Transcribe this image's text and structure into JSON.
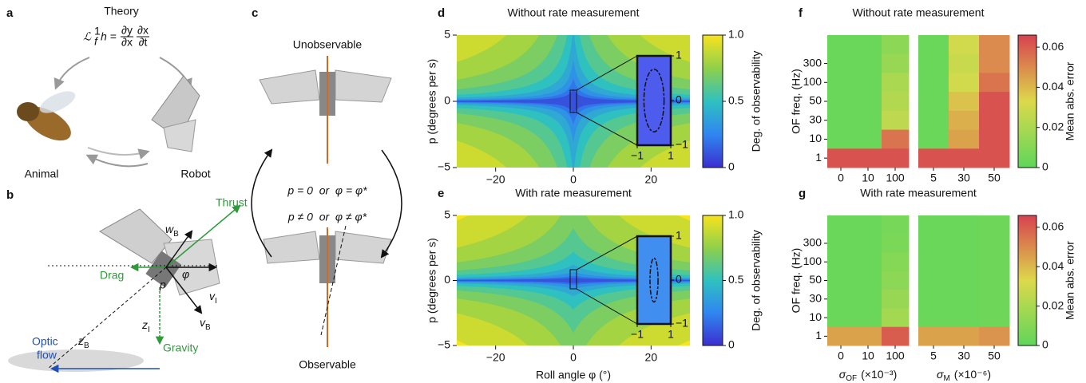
{
  "panels": {
    "a": {
      "label": "a",
      "title": "Theory",
      "equation": {
        "operator": "ℒ",
        "sup": "1",
        "sub": "f",
        "rest": "h =",
        "frac1_num": "∂y",
        "frac1_den": "∂x",
        "frac2_num": "∂x",
        "frac2_den": "∂t"
      },
      "animal": "Animal",
      "robot": "Robot"
    },
    "b": {
      "label": "b",
      "thrust": "Thrust",
      "drag": "Drag",
      "gravity": "Gravity",
      "optic_flow": [
        "Optic",
        "flow"
      ],
      "phi": "φ",
      "p": "p",
      "vectors": [
        {
          "main": "w",
          "sub": "B"
        },
        {
          "main": "v",
          "sub": "I"
        },
        {
          "main": "v",
          "sub": "B"
        },
        {
          "main": "z",
          "sub": "I"
        },
        {
          "main": "z",
          "sub": "B"
        }
      ]
    },
    "c": {
      "label": "c",
      "top": "Unobservable",
      "bottom": "Observable",
      "condition_unobservable": "p = 0  or  φ = φ*",
      "condition_observable": "p ≠ 0  or  φ ≠ φ*"
    }
  },
  "chart_data": [
    {
      "type": "contour",
      "label": "d",
      "title": "Without rate measurement",
      "ylabel": "p (degrees per s)",
      "xlim": [
        -30,
        30
      ],
      "xticks": [
        {
          "value": -20,
          "label": "−20"
        },
        0,
        20
      ],
      "ylim": [
        -5,
        5
      ],
      "yticks": [
        {
          "value": -5,
          "label": "−5"
        },
        0,
        5
      ],
      "colorbar": {
        "label": "Deg. of observability",
        "ylim": [
          0,
          1
        ],
        "yticks": [
          0,
          0.5,
          {
            "value": 1,
            "label": "1.0"
          }
        ],
        "colormap": [
          "#3b2fd0",
          "#2f86f0",
          "#2fc1c0",
          "#8fd04a",
          "#f7e31e"
        ]
      },
      "inset": {
        "xlim": [
          -1,
          1
        ],
        "ylim": [
          -1,
          1
        ],
        "xticks": [
          {
            "value": -1,
            "label": "−1"
          },
          1
        ],
        "yticks": [
          {
            "value": -1,
            "label": "−1"
          },
          0,
          1
        ],
        "color": "#4d5cec"
      }
    },
    {
      "type": "contour",
      "label": "e",
      "title": "With rate measurement",
      "ylabel": "p (degrees per s)",
      "xlabel": "Roll angle φ (°)",
      "xlim": [
        -30,
        30
      ],
      "xticks": [
        {
          "value": -20,
          "label": "−20"
        },
        0,
        20
      ],
      "ylim": [
        -5,
        5
      ],
      "yticks": [
        {
          "value": -5,
          "label": "−5"
        },
        0,
        5
      ],
      "colorbar": {
        "label": "Deg. of observability",
        "ylim": [
          0,
          1
        ],
        "yticks": [
          0,
          0.5,
          {
            "value": 1,
            "label": "1.0"
          }
        ],
        "colormap": [
          "#3b2fd0",
          "#2f86f0",
          "#2fc1c0",
          "#8fd04a",
          "#f7e31e"
        ]
      },
      "inset": {
        "xlim": [
          -1,
          1
        ],
        "ylim": [
          -1,
          1
        ],
        "xticks": [
          {
            "value": -1,
            "label": "−1"
          },
          1
        ],
        "yticks": [
          {
            "value": -1,
            "label": "−1"
          },
          0,
          1
        ],
        "color": "#3f8ef0"
      }
    },
    {
      "type": "heatmap",
      "label": "f",
      "title": "Without rate measurement",
      "ylabel": "OF freq. (Hz)",
      "rows": [
        null,
        "300",
        "100",
        "50",
        "30",
        "10",
        "1"
      ],
      "subplots": [
        {
          "categories": [
            "0",
            "10",
            "100"
          ],
          "values": [
            [
              0.003,
              0.003,
              0.012
            ],
            [
              0.003,
              0.003,
              0.015
            ],
            [
              0.003,
              0.003,
              0.02
            ],
            [
              0.003,
              0.003,
              0.022
            ],
            [
              0.003,
              0.003,
              0.025
            ],
            [
              0.003,
              0.003,
              0.055
            ],
            [
              0.062,
              0.062,
              0.062
            ]
          ]
        },
        {
          "categories": [
            "5",
            "30",
            "50"
          ],
          "values": [
            [
              0.003,
              0.03,
              0.05
            ],
            [
              0.003,
              0.028,
              0.05
            ],
            [
              0.003,
              0.03,
              0.055
            ],
            [
              0.003,
              0.038,
              0.062
            ],
            [
              0.003,
              0.042,
              0.062
            ],
            [
              0.003,
              0.045,
              0.062
            ],
            [
              0.062,
              0.062,
              0.062
            ]
          ]
        }
      ],
      "colorbar": {
        "label": "Mean abs. error",
        "ylim": [
          0,
          0.066
        ],
        "yticks": [
          0,
          0.02,
          0.04,
          0.06
        ],
        "colormap": [
          "#5fd65b",
          "#dcd94b",
          "#d8414f"
        ]
      }
    },
    {
      "type": "heatmap",
      "label": "g",
      "title": "With rate measurement",
      "ylabel": "OF freq. (Hz)",
      "rows": [
        null,
        "300",
        "100",
        "50",
        "30",
        "10",
        "1"
      ],
      "subplots": [
        {
          "categories": [
            "0",
            "10",
            "100"
          ],
          "xlabel": {
            "symbol": "σ",
            "sub": "OF",
            "unit": "(×10⁻³)"
          },
          "values": [
            [
              0.003,
              0.003,
              0.006
            ],
            [
              0.003,
              0.003,
              0.007
            ],
            [
              0.003,
              0.003,
              0.01
            ],
            [
              0.003,
              0.003,
              0.012
            ],
            [
              0.003,
              0.003,
              0.015
            ],
            [
              0.003,
              0.003,
              0.018
            ],
            [
              0.045,
              0.045,
              0.06
            ]
          ]
        },
        {
          "categories": [
            "5",
            "30",
            "50"
          ],
          "xlabel": {
            "symbol": "σ",
            "sub": "M",
            "unit": "(×10⁻⁶)"
          },
          "values": [
            [
              0.003,
              0.003,
              0.004
            ],
            [
              0.003,
              0.003,
              0.004
            ],
            [
              0.003,
              0.003,
              0.004
            ],
            [
              0.003,
              0.003,
              0.004
            ],
            [
              0.003,
              0.003,
              0.004
            ],
            [
              0.003,
              0.003,
              0.004
            ],
            [
              0.045,
              0.045,
              0.048
            ]
          ]
        }
      ],
      "colorbar": {
        "label": "Mean abs. error",
        "ylim": [
          0,
          0.066
        ],
        "yticks": [
          0,
          0.02,
          0.04,
          0.06
        ],
        "colormap": [
          "#5fd65b",
          "#dcd94b",
          "#d8414f"
        ]
      }
    }
  ]
}
